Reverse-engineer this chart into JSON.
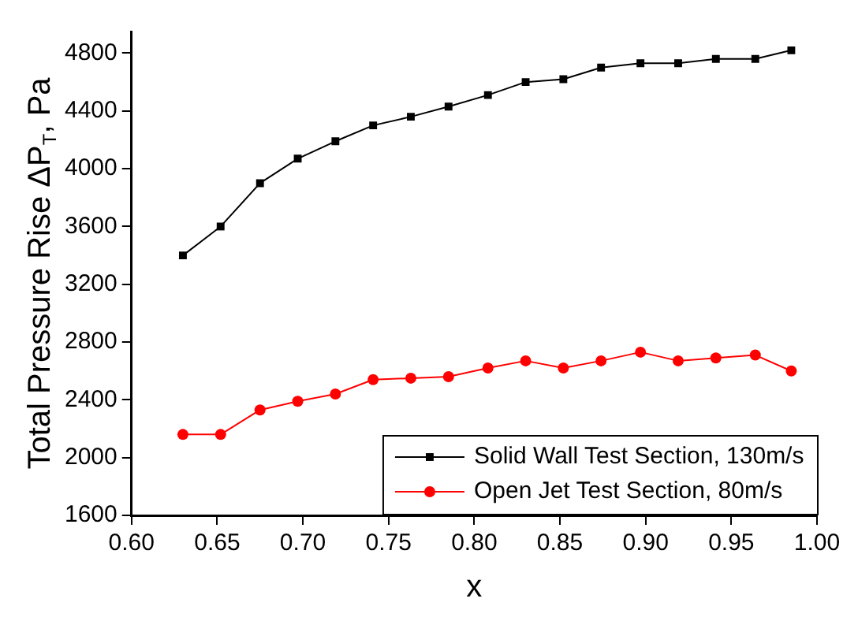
{
  "chart_data": {
    "type": "line",
    "xlabel": "x",
    "ylabel": "Total Pressure Rise ΔP$_{T}$, Pa",
    "x": [
      0.63,
      0.652,
      0.675,
      0.697,
      0.719,
      0.741,
      0.763,
      0.785,
      0.808,
      0.83,
      0.852,
      0.874,
      0.897,
      0.919,
      0.941,
      0.964,
      0.985
    ],
    "series": [
      {
        "name": "Solid Wall Test Section, 130m/s",
        "color": "#000000",
        "marker": "square",
        "values": [
          3400,
          3600,
          3900,
          4070,
          4190,
          4300,
          4360,
          4430,
          4510,
          4600,
          4620,
          4700,
          4730,
          4730,
          4760,
          4760,
          4820
        ]
      },
      {
        "name": "Open Jet Test Section, 80m/s",
        "color": "#ff0000",
        "marker": "circle",
        "values": [
          2160,
          2160,
          2330,
          2390,
          2440,
          2540,
          2550,
          2560,
          2620,
          2670,
          2620,
          2670,
          2730,
          2670,
          2690,
          2710,
          2600
        ]
      }
    ],
    "xlim": [
      0.6,
      1.0
    ],
    "xticks": [
      {
        "value": 0.6,
        "label": "0.60"
      },
      {
        "value": 0.65,
        "label": "0.65"
      },
      {
        "value": 0.7,
        "label": "0.70"
      },
      {
        "value": 0.75,
        "label": "0.75"
      },
      {
        "value": 0.8,
        "label": "0.80"
      },
      {
        "value": 0.85,
        "label": "0.85"
      },
      {
        "value": 0.9,
        "label": "0.90"
      },
      {
        "value": 0.95,
        "label": "0.95"
      },
      {
        "value": 1.0,
        "label": "1.00"
      }
    ],
    "ylim": [
      1600,
      4950
    ],
    "yticks": [
      1600,
      2000,
      2400,
      2800,
      3200,
      3600,
      4000,
      4400,
      4800
    ],
    "grid": false,
    "legend": "bottom right",
    "line_style": "solid"
  }
}
